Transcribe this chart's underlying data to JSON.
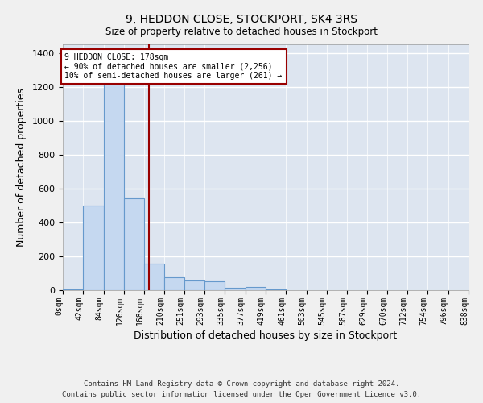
{
  "title": "9, HEDDON CLOSE, STOCKPORT, SK4 3RS",
  "subtitle": "Size of property relative to detached houses in Stockport",
  "xlabel": "Distribution of detached houses by size in Stockport",
  "ylabel": "Number of detached properties",
  "footer_line1": "Contains HM Land Registry data © Crown copyright and database right 2024.",
  "footer_line2": "Contains public sector information licensed under the Open Government Licence v3.0.",
  "bar_color": "#c5d8f0",
  "bar_edge_color": "#6699cc",
  "background_color": "#dde5f0",
  "grid_color": "#ffffff",
  "fig_bg_color": "#f0f0f0",
  "vline_x": 178,
  "vline_color": "#990000",
  "annotation_line1": "9 HEDDON CLOSE: 178sqm",
  "annotation_line2": "← 90% of detached houses are smaller (2,256)",
  "annotation_line3": "10% of semi-detached houses are larger (261) →",
  "bin_edges": [
    0,
    42,
    84,
    126,
    168,
    210,
    251,
    293,
    335,
    377,
    419,
    461,
    503,
    545,
    587,
    629,
    670,
    712,
    754,
    796,
    838
  ],
  "bin_counts": [
    5,
    500,
    1240,
    540,
    155,
    75,
    55,
    50,
    15,
    20,
    5,
    0,
    0,
    0,
    0,
    0,
    0,
    0,
    0,
    0
  ],
  "ylim": [
    0,
    1450
  ],
  "yticks": [
    0,
    200,
    400,
    600,
    800,
    1000,
    1200,
    1400
  ]
}
